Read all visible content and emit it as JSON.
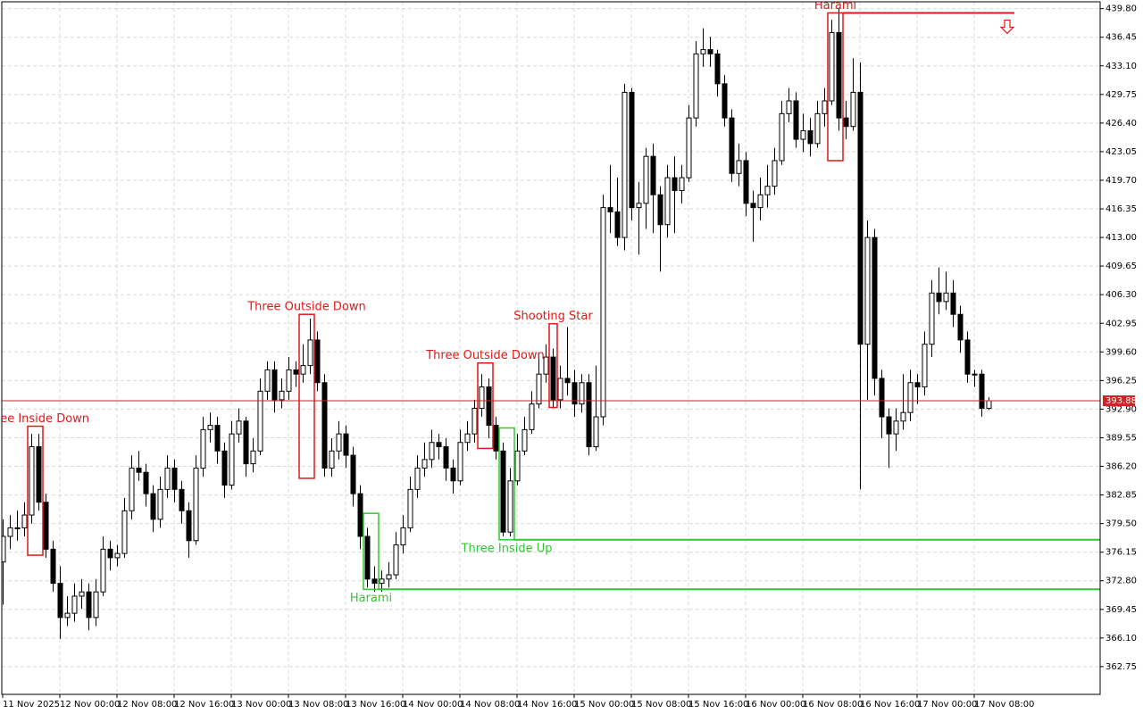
{
  "chart_data": {
    "type": "candlestick",
    "categories": [
      "11 Nov 2025",
      null,
      null,
      null,
      null,
      null,
      null,
      null,
      "12 Nov 00:00",
      null,
      null,
      null,
      null,
      null,
      null,
      null,
      "12 Nov 08:00",
      null,
      null,
      null,
      null,
      null,
      null,
      null,
      "12 Nov 16:00",
      null,
      null,
      null,
      null,
      null,
      null,
      null,
      "13 Nov 00:00",
      null,
      null,
      null,
      null,
      null,
      null,
      null,
      "13 Nov 08:00",
      null,
      null,
      null,
      null,
      null,
      null,
      null,
      "13 Nov 16:00",
      null,
      null,
      null,
      null,
      null,
      null,
      null,
      "14 Nov 00:00",
      null,
      null,
      null,
      null,
      null,
      null,
      null,
      "14 Nov 08:00",
      null,
      null,
      null,
      null,
      null,
      null,
      null,
      "14 Nov 16:00",
      null,
      null,
      null,
      null,
      null,
      null,
      null,
      "15 Nov 00:00",
      null,
      null,
      null,
      null,
      null,
      null,
      null,
      "15 Nov 08:00",
      null,
      null,
      null,
      null,
      null,
      null,
      null,
      "15 Nov 16:00",
      null,
      null,
      null,
      null,
      null,
      null,
      null,
      "16 Nov 00:00",
      null,
      null,
      null,
      null,
      null,
      null,
      null,
      "16 Nov 08:00",
      null,
      null,
      null,
      null,
      null,
      null,
      null,
      "16 Nov 16:00",
      null,
      null,
      null,
      null,
      null,
      null,
      null,
      "17 Nov 00:00",
      null,
      null,
      null,
      null,
      null,
      null,
      null,
      "17 Nov 08:00",
      null,
      null
    ],
    "open": [
      375.0,
      378.0,
      379.0,
      379.0,
      380.5,
      388.5,
      382.0,
      376.5,
      372.5,
      368.5,
      369.0,
      371.0,
      371.5,
      368.5,
      371.5,
      376.5,
      375.5,
      376.0,
      381.0,
      386.0,
      385.5,
      383.0,
      380.0,
      383.5,
      386.0,
      383.5,
      381.0,
      377.5,
      386.0,
      390.5,
      391.0,
      388.0,
      384.0,
      390.0,
      391.5,
      386.5,
      388.0,
      395.0,
      397.5,
      394.0,
      395.0,
      397.5,
      397.0,
      398.0,
      401.0,
      396.0,
      386.0,
      388.0,
      390.0,
      387.5,
      383.0,
      378.0,
      373.0,
      372.5,
      373.0,
      373.5,
      377.0,
      379.0,
      383.5,
      386.0,
      387.0,
      389.0,
      388.5,
      386.0,
      384.5,
      389.0,
      390.0,
      393.0,
      395.5,
      391.0,
      388.0,
      378.5,
      384.5,
      388.0,
      390.5,
      393.5,
      397.0,
      399.0,
      394.0,
      396.5,
      396.0,
      393.5,
      396.0,
      388.5,
      392.0,
      416.5,
      416.0,
      413.0,
      430.0,
      416.5,
      417.0,
      422.5,
      418.0,
      414.5,
      420.0,
      418.5,
      420.0,
      427.0,
      434.5,
      435.0,
      434.5,
      431.0,
      427.0,
      420.5,
      422.0,
      417.0,
      416.5,
      418.0,
      419.0,
      422.0,
      427.5,
      429.0,
      424.5,
      425.5,
      424.0,
      427.5,
      429.0,
      437.0,
      427.0,
      426.0,
      430.0,
      400.5,
      413.0,
      396.5,
      392.0,
      390.0,
      391.5,
      392.5,
      396.0,
      395.5,
      400.5,
      406.5,
      405.5,
      406.5,
      404.0,
      401.0,
      397.0,
      397.0,
      393.0
    ],
    "high": [
      380.0,
      380.5,
      381.0,
      382.0,
      390.0,
      390.0,
      383.0,
      377.5,
      374.5,
      371.0,
      372.5,
      373.0,
      372.5,
      373.0,
      378.0,
      377.5,
      377.0,
      382.5,
      387.5,
      388.0,
      386.5,
      384.0,
      385.0,
      387.5,
      387.0,
      384.5,
      382.0,
      387.5,
      392.0,
      392.5,
      392.0,
      389.0,
      391.5,
      393.0,
      392.0,
      389.5,
      396.5,
      398.5,
      398.5,
      396.5,
      399.0,
      398.5,
      400.5,
      403.5,
      402.0,
      397.0,
      389.5,
      391.5,
      391.0,
      388.5,
      384.0,
      379.0,
      374.5,
      374.0,
      375.0,
      378.5,
      380.5,
      385.0,
      387.5,
      389.0,
      390.5,
      390.0,
      389.5,
      387.0,
      390.5,
      391.5,
      394.0,
      397.0,
      396.5,
      392.0,
      389.0,
      386.0,
      390.0,
      392.0,
      395.0,
      399.5,
      400.5,
      400.0,
      398.0,
      402.5,
      397.5,
      397.0,
      397.0,
      398.0,
      418.0,
      421.5,
      420.0,
      431.0,
      430.5,
      419.5,
      423.5,
      424.0,
      419.0,
      421.5,
      422.5,
      421.5,
      428.5,
      436.0,
      437.5,
      436.5,
      435.0,
      432.0,
      428.0,
      424.0,
      423.0,
      418.5,
      420.0,
      421.5,
      423.5,
      429.0,
      430.5,
      430.0,
      427.5,
      427.0,
      429.0,
      430.5,
      438.5,
      439.8,
      429.0,
      434.0,
      433.5,
      415.0,
      414.0,
      397.5,
      393.0,
      393.0,
      397.0,
      397.5,
      397.0,
      402.0,
      408.0,
      409.5,
      409.0,
      408.0,
      405.0,
      402.0,
      397.5,
      397.5,
      394.3
    ],
    "low": [
      370.0,
      376.5,
      377.5,
      378.0,
      379.5,
      381.0,
      375.5,
      371.5,
      366.0,
      367.5,
      368.0,
      369.5,
      367.0,
      367.5,
      371.0,
      374.0,
      374.5,
      375.5,
      380.0,
      384.5,
      381.5,
      378.5,
      379.0,
      382.5,
      382.0,
      379.5,
      375.5,
      377.0,
      385.0,
      389.0,
      386.5,
      382.5,
      383.5,
      389.0,
      385.0,
      385.5,
      387.5,
      394.0,
      392.5,
      393.0,
      394.0,
      395.5,
      396.0,
      397.0,
      395.0,
      385.0,
      385.0,
      387.0,
      386.0,
      381.5,
      376.5,
      372.0,
      371.5,
      371.5,
      372.0,
      373.0,
      376.0,
      378.5,
      382.5,
      385.0,
      386.0,
      387.0,
      384.5,
      383.0,
      384.0,
      388.0,
      389.0,
      392.0,
      389.5,
      387.0,
      378.0,
      378.0,
      384.0,
      387.5,
      390.0,
      393.0,
      396.0,
      393.0,
      393.0,
      394.5,
      392.0,
      392.5,
      387.5,
      388.0,
      391.0,
      413.5,
      412.0,
      411.5,
      415.0,
      411.0,
      414.0,
      413.5,
      409.0,
      413.0,
      413.5,
      417.0,
      419.5,
      426.0,
      433.0,
      433.0,
      429.5,
      426.0,
      419.5,
      419.0,
      415.5,
      412.5,
      415.0,
      416.5,
      418.0,
      421.5,
      426.5,
      423.5,
      423.0,
      422.5,
      423.5,
      426.0,
      428.5,
      425.5,
      424.5,
      425.5,
      383.5,
      394.0,
      394.5,
      389.5,
      386.0,
      388.0,
      390.5,
      391.5,
      393.5,
      394.5,
      399.0,
      404.0,
      404.5,
      402.5,
      399.5,
      396.0,
      395.5,
      392.0,
      392.8
    ],
    "close": [
      378.0,
      379.0,
      379.0,
      380.5,
      388.5,
      382.0,
      376.5,
      372.5,
      368.5,
      369.0,
      371.0,
      371.5,
      368.5,
      371.5,
      376.5,
      375.5,
      376.0,
      381.0,
      386.0,
      385.5,
      383.0,
      380.0,
      383.5,
      386.0,
      383.5,
      381.0,
      377.5,
      386.0,
      390.5,
      391.0,
      388.0,
      384.0,
      390.0,
      391.5,
      386.5,
      388.0,
      395.0,
      397.5,
      394.0,
      395.0,
      397.5,
      397.0,
      398.0,
      401.0,
      396.0,
      386.0,
      388.0,
      390.0,
      387.5,
      383.0,
      378.0,
      373.0,
      372.5,
      373.0,
      373.5,
      377.0,
      379.0,
      383.5,
      386.0,
      387.0,
      389.0,
      388.5,
      386.0,
      384.5,
      389.0,
      390.0,
      393.0,
      395.5,
      391.0,
      388.0,
      378.5,
      384.5,
      388.0,
      390.5,
      393.5,
      397.0,
      399.0,
      394.0,
      396.5,
      396.0,
      393.5,
      396.0,
      388.5,
      392.0,
      416.5,
      416.0,
      413.0,
      430.0,
      416.5,
      417.0,
      422.5,
      418.0,
      414.5,
      420.0,
      418.5,
      420.0,
      427.0,
      434.5,
      435.0,
      434.5,
      431.0,
      427.0,
      420.5,
      422.0,
      417.0,
      416.5,
      418.0,
      419.0,
      422.0,
      427.5,
      429.0,
      424.5,
      425.5,
      424.0,
      427.5,
      429.0,
      437.0,
      427.0,
      426.0,
      430.0,
      400.5,
      413.0,
      396.5,
      392.0,
      390.0,
      391.5,
      392.5,
      396.0,
      395.5,
      400.5,
      406.5,
      405.5,
      406.5,
      404.0,
      401.0,
      397.0,
      397.0,
      393.0,
      393.88
    ],
    "ylim": [
      359.5,
      440.6
    ],
    "yticks": [
      {
        "value": 439.8,
        "label": "439.80"
      },
      {
        "value": 436.45,
        "label": "436.45"
      },
      {
        "value": 433.1,
        "label": "433.10"
      },
      {
        "value": 429.75,
        "label": "429.75"
      },
      {
        "value": 426.4,
        "label": "426.40"
      },
      {
        "value": 423.05,
        "label": "423.05"
      },
      {
        "value": 419.7,
        "label": "419.70"
      },
      {
        "value": 416.35,
        "label": "416.35"
      },
      {
        "value": 413.0,
        "label": "413.00"
      },
      {
        "value": 409.65,
        "label": "409.65"
      },
      {
        "value": 406.3,
        "label": "406.30"
      },
      {
        "value": 402.95,
        "label": "402.95"
      },
      {
        "value": 399.6,
        "label": "399.60"
      },
      {
        "value": 396.25,
        "label": "396.25"
      },
      {
        "value": 392.9,
        "label": "392.90"
      },
      {
        "value": 389.55,
        "label": "389.55"
      },
      {
        "value": 386.2,
        "label": "386.20"
      },
      {
        "value": 382.85,
        "label": "382.85"
      },
      {
        "value": 379.5,
        "label": "379.50"
      },
      {
        "value": 376.15,
        "label": "376.15"
      },
      {
        "value": 372.8,
        "label": "372.80"
      },
      {
        "value": 369.45,
        "label": "369.45"
      },
      {
        "value": 366.1,
        "label": "366.10"
      },
      {
        "value": 362.75,
        "label": "362.75"
      }
    ],
    "grid": true,
    "bull_color": "#ffffff",
    "bear_color": "#000000",
    "current_price": 393.88,
    "current_price_color": "#c62828",
    "patterns": [
      {
        "label": "Three Inside Down",
        "color": "#e01818",
        "candles": [
          4,
          5
        ],
        "range": [
          375.8,
          390.9
        ]
      },
      {
        "label": "Three Outside Down",
        "color": "#e01818",
        "candles": [
          42,
          43
        ],
        "range": [
          384.8,
          404.0
        ]
      },
      {
        "label": "Harami",
        "color": "#33c633",
        "candles": [
          51,
          52
        ],
        "range": [
          371.8,
          380.7
        ],
        "level": 371.8
      },
      {
        "label": "Three Outside Down",
        "color": "#e01818",
        "candles": [
          67,
          68
        ],
        "range": [
          388.3,
          398.3
        ]
      },
      {
        "label": "Three Inside Up",
        "color": "#33c633",
        "candles": [
          70,
          71
        ],
        "range": [
          377.6,
          390.7
        ],
        "level": 377.6
      },
      {
        "label": "Shooting Star",
        "color": "#e01818",
        "candles": [
          77,
          77
        ],
        "range": [
          393.1,
          402.9
        ]
      },
      {
        "label": "Harami",
        "color": "#e01818",
        "candles": [
          116,
          117
        ],
        "range": [
          422.0,
          439.3
        ],
        "level": 439.3
      }
    ]
  }
}
